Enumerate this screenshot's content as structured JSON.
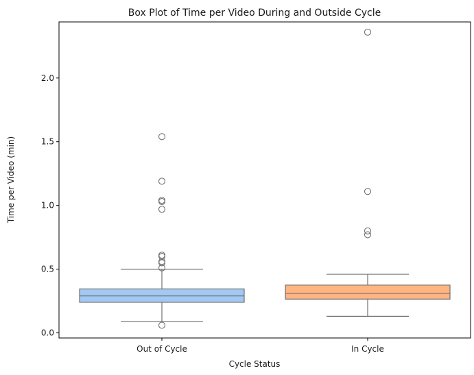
{
  "chart_data": {
    "type": "box",
    "title": "Box Plot of Time per Video During and Outside Cycle",
    "xlabel": "Cycle Status",
    "ylabel": "Time per Video (min)",
    "ylim": [
      -0.04,
      2.44
    ],
    "yticks": [
      {
        "value": 0.0,
        "label": "0.0"
      },
      {
        "value": 0.5,
        "label": "0.5"
      },
      {
        "value": 1.0,
        "label": "1.0"
      },
      {
        "value": 1.5,
        "label": "1.5"
      },
      {
        "value": 2.0,
        "label": "2.0"
      }
    ],
    "grid": false,
    "series": [
      {
        "category": "Out of Cycle",
        "color": "#a1c9f4",
        "whisker_low": 0.09,
        "q1": 0.24,
        "median": 0.29,
        "q3": 0.345,
        "whisker_high": 0.5,
        "outliers": [
          0.06,
          0.51,
          0.55,
          0.56,
          0.6,
          0.61,
          0.97,
          1.03,
          1.04,
          1.19,
          1.54
        ]
      },
      {
        "category": "In Cycle",
        "color": "#ffb482",
        "whisker_low": 0.13,
        "q1": 0.265,
        "median": 0.31,
        "q3": 0.375,
        "whisker_high": 0.46,
        "outliers": [
          0.77,
          0.8,
          1.11,
          2.36
        ]
      }
    ],
    "colors": {
      "line": "#707070",
      "axis": "#000000"
    }
  }
}
